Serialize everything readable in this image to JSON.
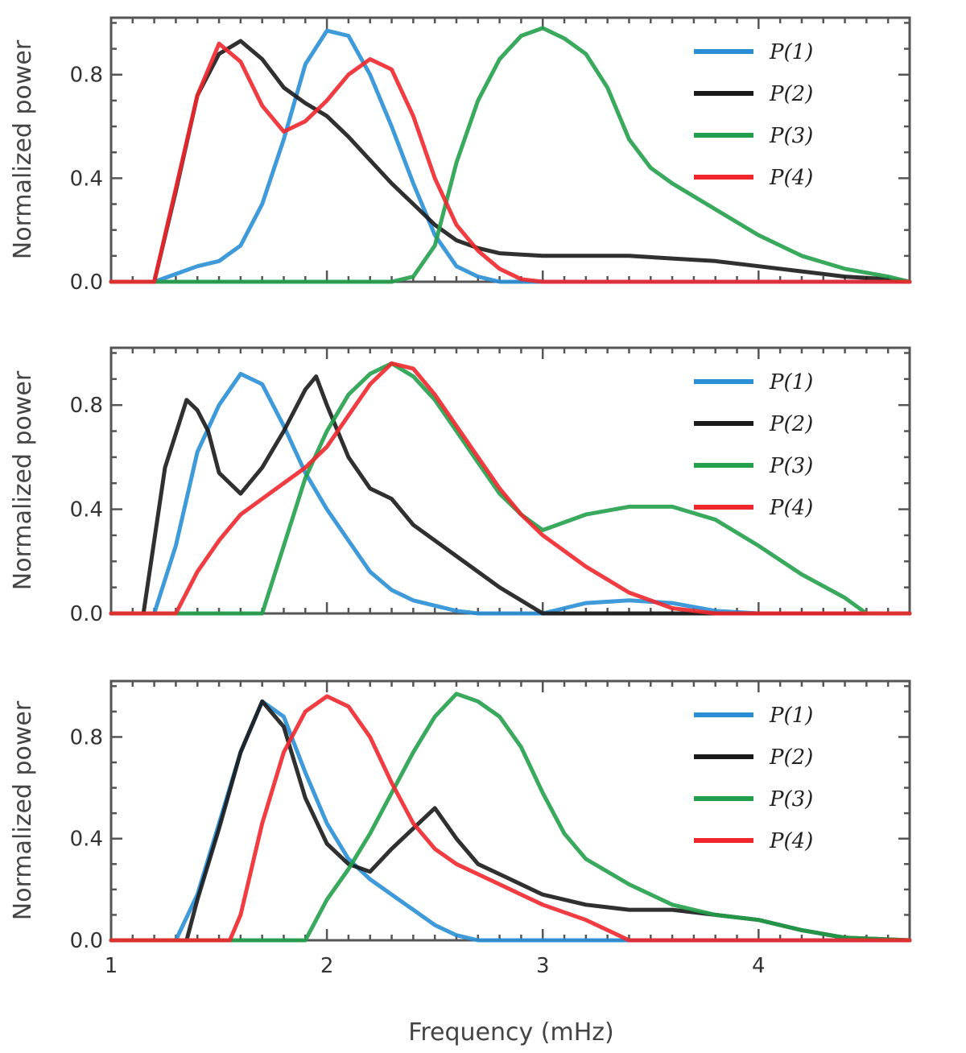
{
  "chart_data": [
    {
      "type": "line",
      "panel": "top",
      "ylabel": "Normalized power",
      "side_label": "",
      "xlim": [
        1,
        4.7
      ],
      "ylim": [
        0,
        1.02
      ],
      "yticks": [
        0.0,
        0.4,
        0.8
      ],
      "ytick_labels": [
        "0.0",
        "0.4",
        "0.8"
      ],
      "grid": false,
      "legend_position": "top-right",
      "series": [
        {
          "name": "P(1)",
          "color": "#2a8fd6",
          "x": [
            1.0,
            1.2,
            1.3,
            1.4,
            1.5,
            1.6,
            1.7,
            1.8,
            1.9,
            2.0,
            2.1,
            2.2,
            2.3,
            2.4,
            2.5,
            2.6,
            2.7,
            2.8,
            3.0,
            4.7
          ],
          "y": [
            0.0,
            0.0,
            0.03,
            0.06,
            0.08,
            0.14,
            0.3,
            0.55,
            0.84,
            0.97,
            0.95,
            0.8,
            0.6,
            0.38,
            0.18,
            0.06,
            0.02,
            0.0,
            0.0,
            0.0
          ]
        },
        {
          "name": "P(2)",
          "color": "#1a1a1a",
          "x": [
            1.0,
            1.1,
            1.2,
            1.3,
            1.4,
            1.5,
            1.6,
            1.7,
            1.8,
            1.9,
            2.0,
            2.1,
            2.2,
            2.3,
            2.4,
            2.5,
            2.6,
            2.7,
            2.8,
            3.0,
            3.2,
            3.4,
            3.6,
            3.8,
            4.0,
            4.2,
            4.4,
            4.6,
            4.7
          ],
          "y": [
            0.0,
            0.0,
            0.0,
            0.35,
            0.72,
            0.88,
            0.93,
            0.86,
            0.75,
            0.69,
            0.64,
            0.56,
            0.47,
            0.38,
            0.3,
            0.22,
            0.16,
            0.13,
            0.11,
            0.1,
            0.1,
            0.1,
            0.09,
            0.08,
            0.06,
            0.04,
            0.02,
            0.01,
            0.0
          ]
        },
        {
          "name": "P(3)",
          "color": "#22a04b",
          "x": [
            1.0,
            2.3,
            2.4,
            2.5,
            2.6,
            2.7,
            2.8,
            2.9,
            3.0,
            3.1,
            3.2,
            3.3,
            3.4,
            3.5,
            3.6,
            3.8,
            4.0,
            4.2,
            4.4,
            4.6,
            4.7
          ],
          "y": [
            0.0,
            0.0,
            0.02,
            0.14,
            0.46,
            0.7,
            0.86,
            0.95,
            0.98,
            0.94,
            0.88,
            0.75,
            0.55,
            0.44,
            0.38,
            0.28,
            0.18,
            0.1,
            0.05,
            0.02,
            0.0
          ]
        },
        {
          "name": "P(4)",
          "color": "#f0282d",
          "x": [
            1.0,
            1.1,
            1.2,
            1.3,
            1.4,
            1.5,
            1.6,
            1.7,
            1.8,
            1.9,
            2.0,
            2.1,
            2.2,
            2.3,
            2.4,
            2.5,
            2.6,
            2.7,
            2.8,
            2.9,
            3.0,
            4.7
          ],
          "y": [
            0.0,
            0.0,
            0.0,
            0.36,
            0.72,
            0.92,
            0.85,
            0.68,
            0.58,
            0.62,
            0.7,
            0.8,
            0.86,
            0.82,
            0.64,
            0.4,
            0.22,
            0.12,
            0.05,
            0.01,
            0.0,
            0.0
          ]
        }
      ]
    },
    {
      "type": "line",
      "panel": "middle",
      "ylabel": "Normalized power",
      "side_label": "",
      "xlim": [
        1,
        4.7
      ],
      "ylim": [
        0,
        1.02
      ],
      "yticks": [
        0.0,
        0.4,
        0.8
      ],
      "ytick_labels": [
        "0.0",
        "0.4",
        "0.8"
      ],
      "grid": false,
      "legend_position": "top-right",
      "series": [
        {
          "name": "P(1)",
          "color": "#2a8fd6",
          "x": [
            1.0,
            1.2,
            1.3,
            1.4,
            1.5,
            1.6,
            1.7,
            1.8,
            1.9,
            2.0,
            2.1,
            2.2,
            2.3,
            2.4,
            2.5,
            2.6,
            2.7,
            2.8,
            3.0,
            3.2,
            3.4,
            3.6,
            3.8,
            4.0,
            4.7
          ],
          "y": [
            0.0,
            0.0,
            0.26,
            0.62,
            0.8,
            0.92,
            0.88,
            0.72,
            0.54,
            0.4,
            0.28,
            0.16,
            0.09,
            0.05,
            0.03,
            0.01,
            0.0,
            0.0,
            0.0,
            0.04,
            0.05,
            0.04,
            0.01,
            0.0,
            0.0
          ]
        },
        {
          "name": "P(2)",
          "color": "#1a1a1a",
          "x": [
            1.0,
            1.15,
            1.25,
            1.35,
            1.4,
            1.45,
            1.5,
            1.6,
            1.7,
            1.8,
            1.9,
            1.95,
            2.0,
            2.1,
            2.2,
            2.3,
            2.4,
            2.5,
            2.6,
            2.7,
            2.8,
            3.0,
            3.1,
            3.2,
            4.7
          ],
          "y": [
            0.0,
            0.0,
            0.56,
            0.82,
            0.78,
            0.7,
            0.54,
            0.46,
            0.56,
            0.7,
            0.86,
            0.91,
            0.8,
            0.6,
            0.48,
            0.44,
            0.34,
            0.28,
            0.22,
            0.16,
            0.1,
            0.0,
            0.0,
            0.0,
            0.0
          ]
        },
        {
          "name": "P(3)",
          "color": "#22a04b",
          "x": [
            1.0,
            1.7,
            1.8,
            1.9,
            2.0,
            2.1,
            2.2,
            2.3,
            2.4,
            2.5,
            2.6,
            2.7,
            2.8,
            2.9,
            3.0,
            3.2,
            3.4,
            3.6,
            3.8,
            4.0,
            4.2,
            4.4,
            4.5,
            4.7
          ],
          "y": [
            0.0,
            0.0,
            0.26,
            0.52,
            0.7,
            0.84,
            0.92,
            0.96,
            0.91,
            0.82,
            0.7,
            0.58,
            0.46,
            0.38,
            0.32,
            0.38,
            0.41,
            0.41,
            0.36,
            0.26,
            0.15,
            0.06,
            0.0,
            0.0
          ]
        },
        {
          "name": "P(4)",
          "color": "#f0282d",
          "x": [
            1.0,
            1.3,
            1.4,
            1.5,
            1.6,
            1.7,
            1.8,
            1.9,
            2.0,
            2.1,
            2.2,
            2.3,
            2.4,
            2.5,
            2.6,
            2.7,
            2.8,
            2.9,
            3.0,
            3.2,
            3.4,
            3.6,
            3.8,
            4.0,
            4.7
          ],
          "y": [
            0.0,
            0.0,
            0.16,
            0.28,
            0.38,
            0.44,
            0.5,
            0.56,
            0.64,
            0.76,
            0.88,
            0.96,
            0.94,
            0.84,
            0.72,
            0.6,
            0.48,
            0.38,
            0.3,
            0.18,
            0.08,
            0.02,
            0.0,
            0.0,
            0.0
          ]
        }
      ]
    },
    {
      "type": "line",
      "panel": "bottom",
      "ylabel": "Normalized power",
      "side_label": "",
      "xlabel": "Frequency (mHz)",
      "xlim": [
        1,
        4.7
      ],
      "ylim": [
        0,
        1.02
      ],
      "yticks": [
        0.0,
        0.4,
        0.8
      ],
      "ytick_labels": [
        "0.0",
        "0.4",
        "0.8"
      ],
      "xticks": [
        1,
        2,
        3,
        4
      ],
      "xtick_labels": [
        "1",
        "2",
        "3",
        "4"
      ],
      "grid": false,
      "legend_position": "top-right",
      "series": [
        {
          "name": "P(1)",
          "color": "#2a8fd6",
          "x": [
            1.0,
            1.3,
            1.4,
            1.5,
            1.6,
            1.7,
            1.8,
            1.9,
            2.0,
            2.1,
            2.2,
            2.3,
            2.4,
            2.5,
            2.6,
            2.7,
            3.0,
            4.7
          ],
          "y": [
            0.0,
            0.0,
            0.18,
            0.46,
            0.74,
            0.94,
            0.88,
            0.66,
            0.46,
            0.32,
            0.24,
            0.18,
            0.12,
            0.06,
            0.02,
            0.0,
            0.0,
            0.0
          ]
        },
        {
          "name": "P(2)",
          "color": "#1a1a1a",
          "x": [
            1.0,
            1.35,
            1.4,
            1.5,
            1.6,
            1.7,
            1.8,
            1.9,
            2.0,
            2.1,
            2.2,
            2.3,
            2.4,
            2.5,
            2.6,
            2.7,
            2.8,
            3.0,
            3.2,
            3.4,
            3.6,
            3.8,
            4.0,
            4.2,
            4.4,
            4.7
          ],
          "y": [
            0.0,
            0.0,
            0.16,
            0.44,
            0.74,
            0.94,
            0.84,
            0.56,
            0.38,
            0.3,
            0.27,
            0.36,
            0.44,
            0.52,
            0.4,
            0.3,
            0.26,
            0.18,
            0.14,
            0.12,
            0.12,
            0.1,
            0.08,
            0.04,
            0.01,
            0.0
          ]
        },
        {
          "name": "P(3)",
          "color": "#22a04b",
          "x": [
            1.0,
            1.9,
            2.0,
            2.1,
            2.2,
            2.3,
            2.4,
            2.5,
            2.6,
            2.7,
            2.8,
            2.9,
            3.0,
            3.1,
            3.2,
            3.4,
            3.6,
            3.8,
            4.0,
            4.2,
            4.4,
            4.7
          ],
          "y": [
            0.0,
            0.0,
            0.16,
            0.28,
            0.42,
            0.58,
            0.74,
            0.88,
            0.97,
            0.94,
            0.88,
            0.76,
            0.58,
            0.42,
            0.32,
            0.22,
            0.14,
            0.1,
            0.08,
            0.04,
            0.01,
            0.0
          ]
        },
        {
          "name": "P(4)",
          "color": "#f0282d",
          "x": [
            1.0,
            1.55,
            1.6,
            1.7,
            1.8,
            1.9,
            2.0,
            2.1,
            2.2,
            2.3,
            2.4,
            2.5,
            2.6,
            2.7,
            2.8,
            2.9,
            3.0,
            3.2,
            3.4,
            4.7
          ],
          "y": [
            0.0,
            0.0,
            0.1,
            0.46,
            0.74,
            0.9,
            0.96,
            0.92,
            0.8,
            0.62,
            0.46,
            0.36,
            0.3,
            0.26,
            0.22,
            0.18,
            0.14,
            0.08,
            0.0,
            0.0
          ]
        }
      ]
    }
  ]
}
